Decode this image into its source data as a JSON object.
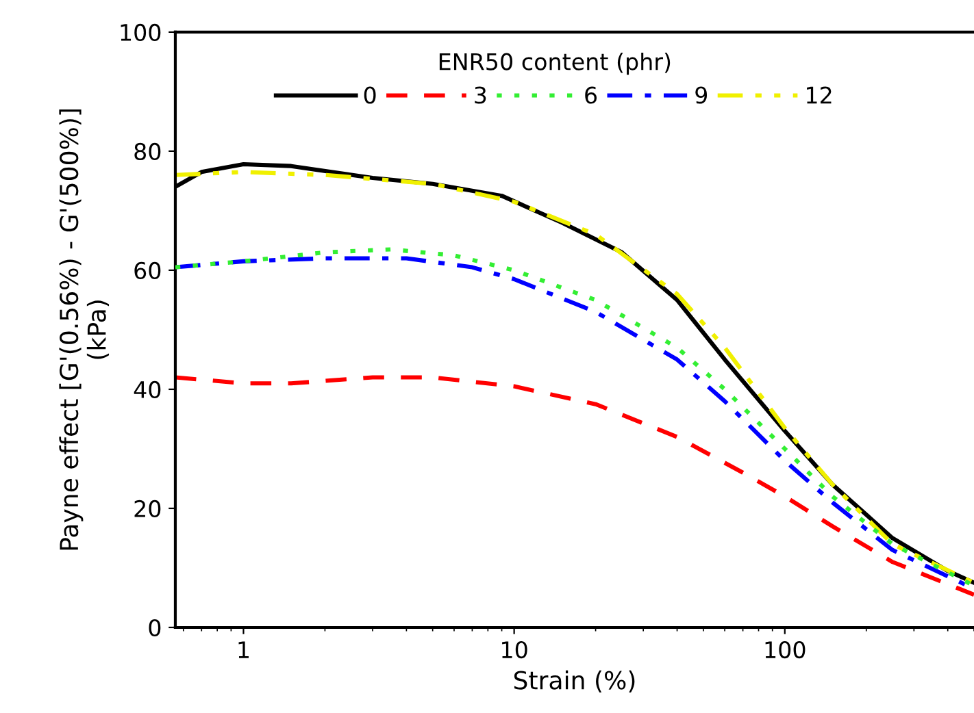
{
  "chart_data": {
    "type": "line",
    "xlabel": "Strain (%)",
    "ylabel": "Payne effect [G'(0.56%) - G'(500%)]\n(kPa)",
    "legend_title": "ENR50 content (phr)",
    "legend": "top",
    "log": "x",
    "grid": false,
    "marker": "none",
    "xlim": [
      0.56,
      500
    ],
    "xticks": [
      1,
      10,
      100
    ],
    "ylim": [
      0,
      100
    ],
    "yticks": [
      0,
      20,
      40,
      60,
      80,
      100
    ],
    "series": [
      {
        "name": "0",
        "color": "#000000",
        "line_style": "solid",
        "x": [
          0.56,
          0.7,
          1,
          1.5,
          3,
          5,
          9,
          15,
          25,
          40,
          60,
          100,
          150,
          250,
          400,
          500
        ],
        "values": [
          74,
          76.5,
          77.8,
          77.5,
          75.5,
          74.5,
          72.5,
          68,
          63,
          55,
          45,
          33,
          24,
          15,
          9.5,
          7.5
        ]
      },
      {
        "name": "3",
        "color": "#ff0000",
        "line_style": "dashed",
        "x": [
          0.56,
          1,
          1.5,
          3,
          5,
          10,
          20,
          40,
          70,
          100,
          150,
          250,
          500
        ],
        "values": [
          42,
          41,
          41,
          42,
          42,
          40.5,
          37.5,
          32,
          26,
          22,
          17,
          11,
          5.5
        ]
      },
      {
        "name": "6",
        "color": "#33ee33",
        "line_style": "dotted",
        "x": [
          0.56,
          1,
          2,
          3.5,
          6,
          10,
          20,
          40,
          60,
          100,
          150,
          250,
          500
        ],
        "values": [
          60.5,
          61.5,
          63,
          63.5,
          62.5,
          60,
          55,
          47,
          40,
          30,
          22,
          14,
          7
        ]
      },
      {
        "name": "9",
        "color": "#0000ff",
        "line_style": "dashdot",
        "x": [
          0.56,
          1,
          2,
          4,
          7,
          10,
          20,
          40,
          60,
          100,
          150,
          250,
          500
        ],
        "values": [
          60.5,
          61.5,
          62,
          62,
          60.5,
          58.5,
          53,
          45,
          38,
          28,
          21,
          13,
          6.5
        ]
      },
      {
        "name": "12",
        "color": "#f0f000",
        "line_style": "dashdotdot",
        "x": [
          0.56,
          1,
          2,
          5,
          10,
          20,
          40,
          60,
          100,
          150,
          250,
          500
        ],
        "values": [
          76,
          76.5,
          76,
          74.5,
          71.5,
          66,
          56,
          47,
          33.5,
          24,
          14,
          7.5
        ]
      }
    ]
  }
}
